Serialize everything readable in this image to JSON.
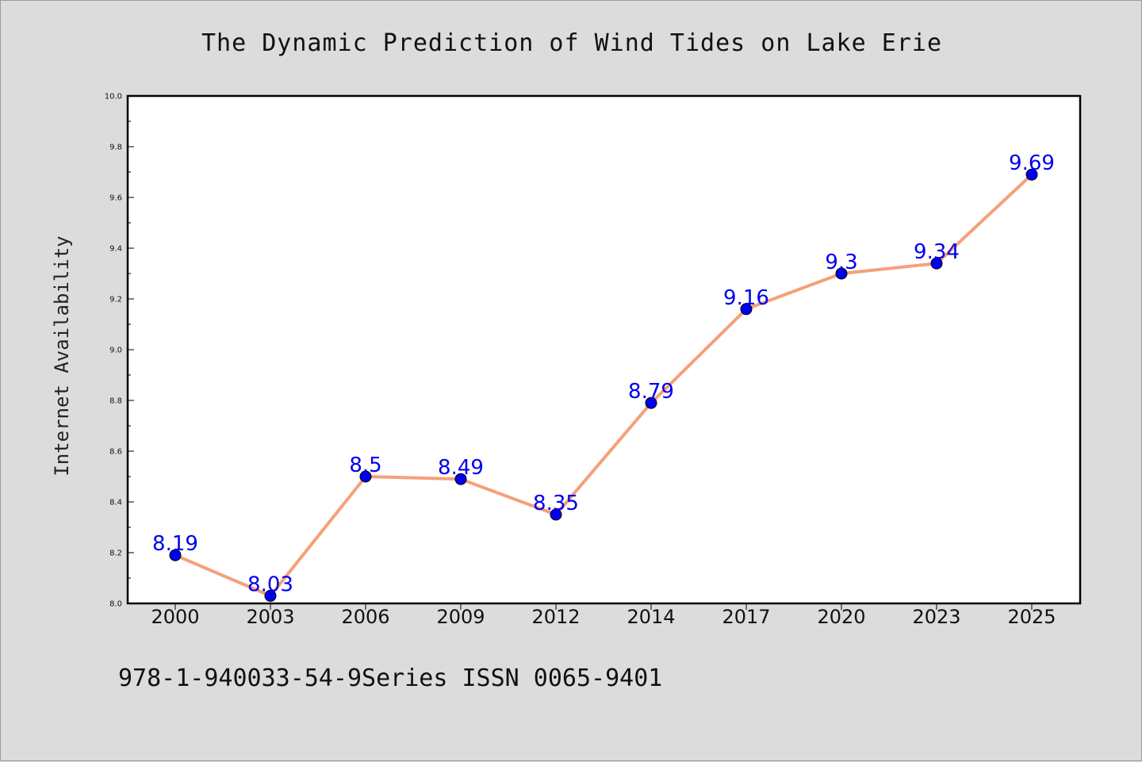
{
  "footnote": "978-1-940033-54-9Series ISSN 0065-9401",
  "chart_data": {
    "type": "line",
    "title": "The Dynamic Prediction of Wind Tides on Lake Erie",
    "xlabel": "",
    "ylabel": "Internet Availability",
    "categories": [
      "2000",
      "2003",
      "2006",
      "2009",
      "2012",
      "2014",
      "2017",
      "2020",
      "2023",
      "2025"
    ],
    "series": [
      {
        "values": [
          8.19,
          8.03,
          8.5,
          8.49,
          8.35,
          8.79,
          9.16,
          9.3,
          9.34,
          9.69
        ]
      }
    ],
    "ylim": [
      8.0,
      10.0
    ],
    "yticks": [
      "8.0",
      "8.2",
      "8.4",
      "8.6",
      "8.8",
      "9.0",
      "9.2",
      "9.4",
      "9.6",
      "9.8",
      "10.0"
    ],
    "grid": false,
    "data_labels": true,
    "colors": {
      "line": "#f5a07a",
      "marker": "#0000ee",
      "marker_edge": "#000000",
      "data_label": "#0000ee",
      "plot_background": "#ffffff",
      "figure_background": "#dcdcdc"
    }
  }
}
